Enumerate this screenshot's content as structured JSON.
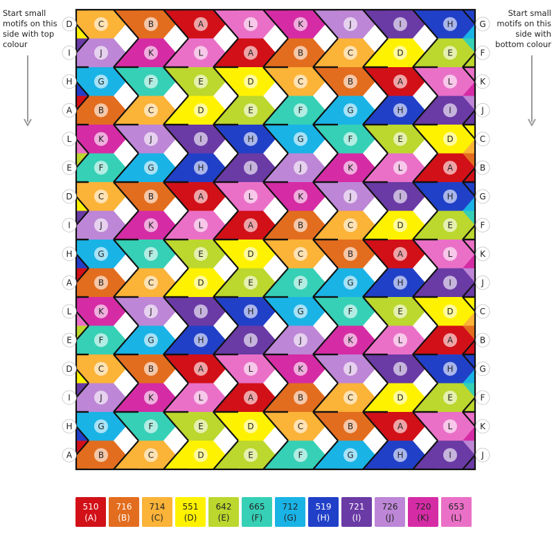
{
  "notes": {
    "left": "Start small motifs on this side with top colour",
    "right": "Start small motifs on this side with bottom colour"
  },
  "colors": {
    "A": "#d21018",
    "B": "#e36d1e",
    "C": "#fbb338",
    "D": "#fff200",
    "E": "#bcd72d",
    "F": "#36d0b6",
    "G": "#1ab3e6",
    "H": "#2140c8",
    "I": "#6a3aa5",
    "J": "#bd86d6",
    "K": "#d52ca5",
    "L": "#ea70c7"
  },
  "legend": [
    {
      "code": "510",
      "letter": "(A)",
      "key": "A"
    },
    {
      "code": "716",
      "letter": "(B)",
      "key": "B"
    },
    {
      "code": "714",
      "letter": "(C)",
      "key": "C"
    },
    {
      "code": "551",
      "letter": "(D)",
      "key": "D"
    },
    {
      "code": "642",
      "letter": "(E)",
      "key": "E"
    },
    {
      "code": "665",
      "letter": "(F)",
      "key": "F"
    },
    {
      "code": "712",
      "letter": "(G)",
      "key": "G"
    },
    {
      "code": "519",
      "letter": "(H)",
      "key": "H"
    },
    {
      "code": "721",
      "letter": "(I)",
      "key": "I"
    },
    {
      "code": "726",
      "letter": "(J)",
      "key": "J"
    },
    {
      "code": "720",
      "letter": "(K)",
      "key": "K"
    },
    {
      "code": "653",
      "letter": "(L)",
      "key": "L"
    }
  ],
  "grid": {
    "rows": [
      [
        "C",
        "B",
        "A",
        "L",
        "K",
        "J",
        "I",
        "H"
      ],
      [
        "J",
        "K",
        "L",
        "A",
        "B",
        "C",
        "D",
        "E"
      ],
      [
        "G",
        "F",
        "E",
        "D",
        "C",
        "B",
        "A",
        "L"
      ],
      [
        "B",
        "C",
        "D",
        "E",
        "F",
        "G",
        "H",
        "I"
      ],
      [
        "K",
        "J",
        "I",
        "H",
        "G",
        "F",
        "E",
        "D"
      ],
      [
        "F",
        "G",
        "H",
        "I",
        "J",
        "K",
        "L",
        "A"
      ],
      [
        "C",
        "B",
        "A",
        "L",
        "K",
        "J",
        "I",
        "H"
      ],
      [
        "J",
        "K",
        "L",
        "A",
        "B",
        "C",
        "D",
        "E"
      ],
      [
        "G",
        "F",
        "E",
        "D",
        "C",
        "B",
        "A",
        "L"
      ],
      [
        "B",
        "C",
        "D",
        "E",
        "F",
        "G",
        "H",
        "I"
      ],
      [
        "K",
        "J",
        "I",
        "H",
        "G",
        "F",
        "E",
        "D"
      ],
      [
        "F",
        "G",
        "H",
        "I",
        "J",
        "K",
        "L",
        "A"
      ],
      [
        "C",
        "B",
        "A",
        "L",
        "K",
        "J",
        "I",
        "H"
      ],
      [
        "J",
        "K",
        "L",
        "A",
        "B",
        "C",
        "D",
        "E"
      ],
      [
        "G",
        "F",
        "E",
        "D",
        "C",
        "B",
        "A",
        "L"
      ],
      [
        "B",
        "C",
        "D",
        "E",
        "F",
        "G",
        "H",
        "I"
      ]
    ],
    "left_labels": [
      "D",
      "I",
      "H",
      "A",
      "L",
      "E",
      "D",
      "I",
      "H",
      "A",
      "L",
      "E",
      "D",
      "I",
      "H",
      "A"
    ],
    "right_labels": [
      "G",
      "F",
      "K",
      "J",
      "C",
      "B",
      "G",
      "F",
      "K",
      "J",
      "C",
      "B",
      "G",
      "F",
      "K",
      "J"
    ]
  }
}
